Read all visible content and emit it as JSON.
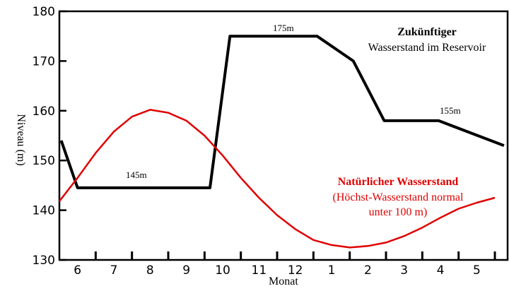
{
  "chart_data": {
    "type": "line",
    "xlabel": "Monat",
    "ylabel": "Niveau (m)",
    "ylim": [
      130,
      180
    ],
    "yticks": [
      130,
      140,
      150,
      160,
      170,
      180
    ],
    "x_tick_labels": [
      "6",
      "7",
      "8",
      "9",
      "10",
      "11",
      "12",
      "1",
      "2",
      "3",
      "4",
      "5"
    ],
    "grid": false,
    "series": [
      {
        "label": [
          "Zukünftiger",
          "Wasserstand im Reservoir"
        ],
        "color": "#000000",
        "x": [
          5.55,
          6.0,
          9.65,
          10.2,
          12.6,
          13.6,
          14.45,
          15.95,
          17.75
        ],
        "y": [
          154,
          144.5,
          144.5,
          175,
          175,
          170,
          158,
          158,
          153
        ]
      },
      {
        "label": [
          "Natürlicher Wasserstand",
          "(Höchst-Wasserstand normal",
          "unter 100 m)"
        ],
        "color": "#e00000",
        "x": [
          5.5,
          6.0,
          6.5,
          7.0,
          7.5,
          8.0,
          8.5,
          9.0,
          9.5,
          10.0,
          10.5,
          11.0,
          11.5,
          12.0,
          12.5,
          13.0,
          13.5,
          14.0,
          14.5,
          15.0,
          15.5,
          16.0,
          16.5,
          17.0,
          17.5
        ],
        "y": [
          141.8,
          146.5,
          151.5,
          155.8,
          158.8,
          160.2,
          159.6,
          158.0,
          155.0,
          151.0,
          146.5,
          142.5,
          139.0,
          136.2,
          134.0,
          133.0,
          132.5,
          132.8,
          133.5,
          134.8,
          136.5,
          138.5,
          140.3,
          141.5,
          142.5
        ]
      }
    ],
    "annotations": [
      "175m",
      "145m",
      "155m"
    ]
  }
}
